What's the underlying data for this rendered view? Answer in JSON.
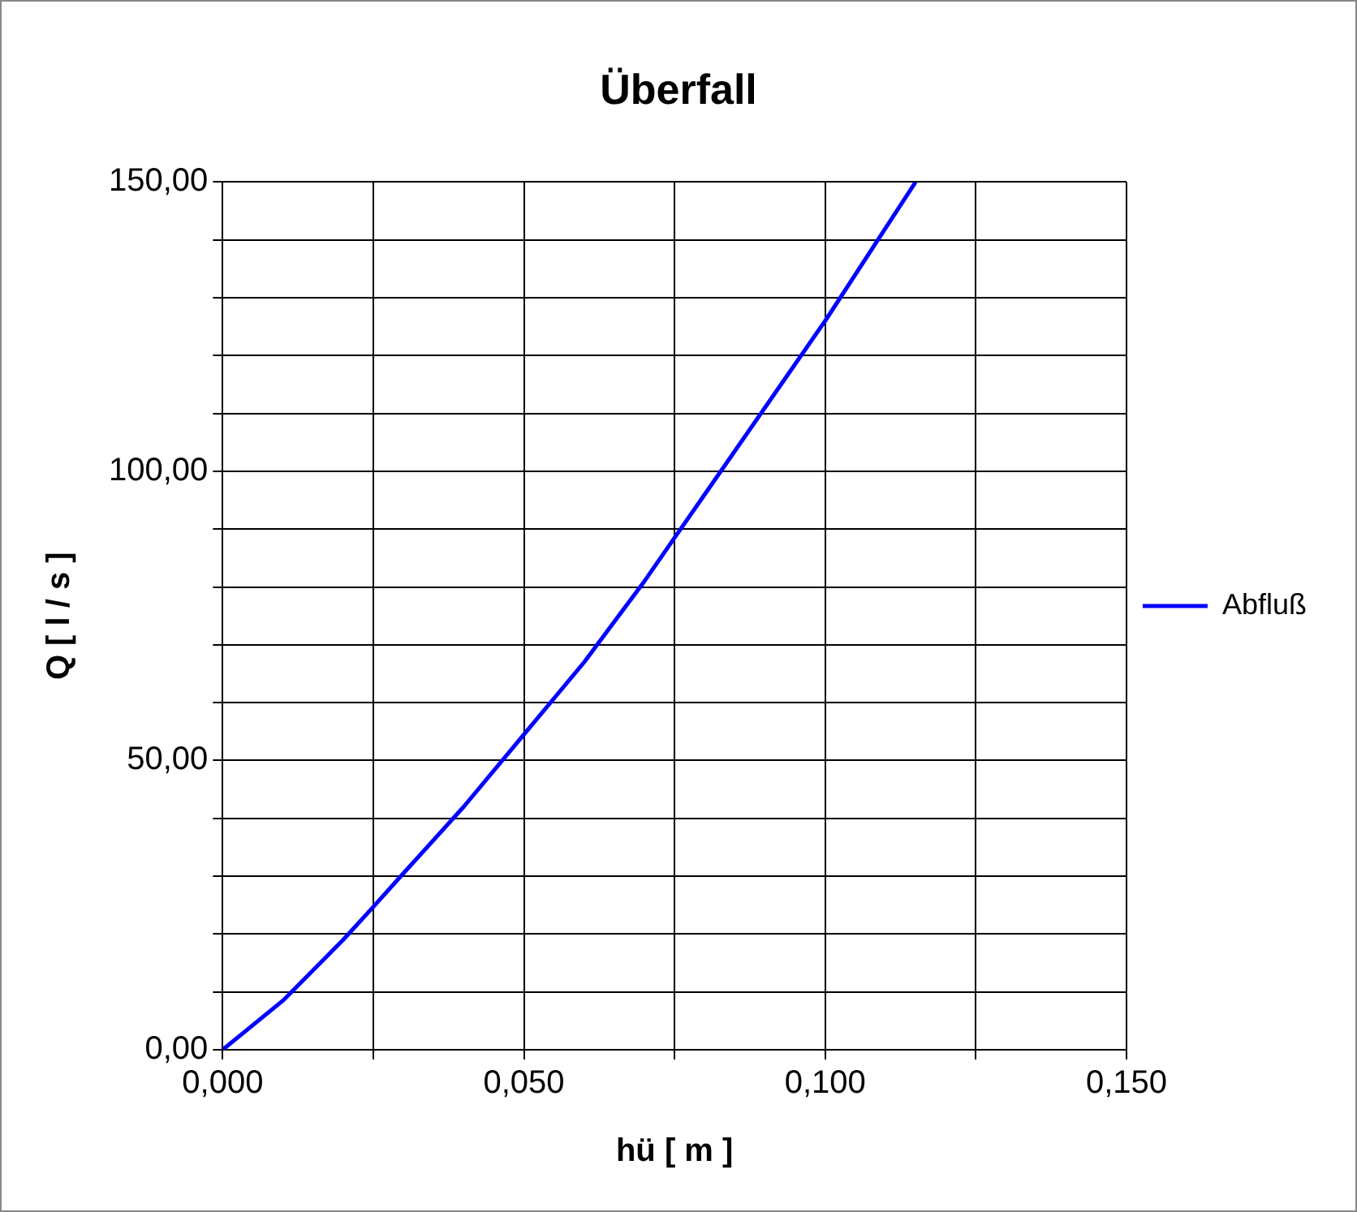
{
  "chart_data": {
    "type": "line",
    "title": "Überfall",
    "xlabel": "hü [ m ]",
    "ylabel": "Q [ l / s ]",
    "x": [
      0,
      0.01,
      0.02,
      0.025,
      0.03,
      0.04,
      0.05,
      0.06,
      0.07,
      0.075,
      0.08,
      0.09,
      0.1,
      0.11,
      0.115
    ],
    "series": [
      {
        "name": "Abfluß",
        "color": "#0000ff",
        "values": [
          0,
          8.5,
          19,
          24.7,
          30.5,
          42,
          54.5,
          67,
          81,
          88.5,
          96,
          111,
          126,
          142,
          150
        ]
      }
    ],
    "xlim": [
      0,
      0.15
    ],
    "xticks": [
      {
        "value": 0,
        "label": "0,000"
      },
      {
        "value": 0.025,
        "label": null
      },
      {
        "value": 0.05,
        "label": "0,050"
      },
      {
        "value": 0.075,
        "label": null
      },
      {
        "value": 0.1,
        "label": "0,100"
      },
      {
        "value": 0.125,
        "label": null
      },
      {
        "value": 0.15,
        "label": "0,150"
      }
    ],
    "ylim": [
      0,
      150
    ],
    "yticks": [
      {
        "value": 0,
        "label": "0,00"
      },
      {
        "value": 10,
        "label": null
      },
      {
        "value": 20,
        "label": null
      },
      {
        "value": 30,
        "label": null
      },
      {
        "value": 40,
        "label": null
      },
      {
        "value": 50,
        "label": "50,00"
      },
      {
        "value": 60,
        "label": null
      },
      {
        "value": 70,
        "label": null
      },
      {
        "value": 80,
        "label": null
      },
      {
        "value": 90,
        "label": null
      },
      {
        "value": 100,
        "label": "100,00"
      },
      {
        "value": 110,
        "label": null
      },
      {
        "value": 120,
        "label": null
      },
      {
        "value": 130,
        "label": null
      },
      {
        "value": 140,
        "label": null
      },
      {
        "value": 150,
        "label": "150,00"
      }
    ],
    "grid": true,
    "legend": "right",
    "marker": "none",
    "line_style": "solid"
  }
}
